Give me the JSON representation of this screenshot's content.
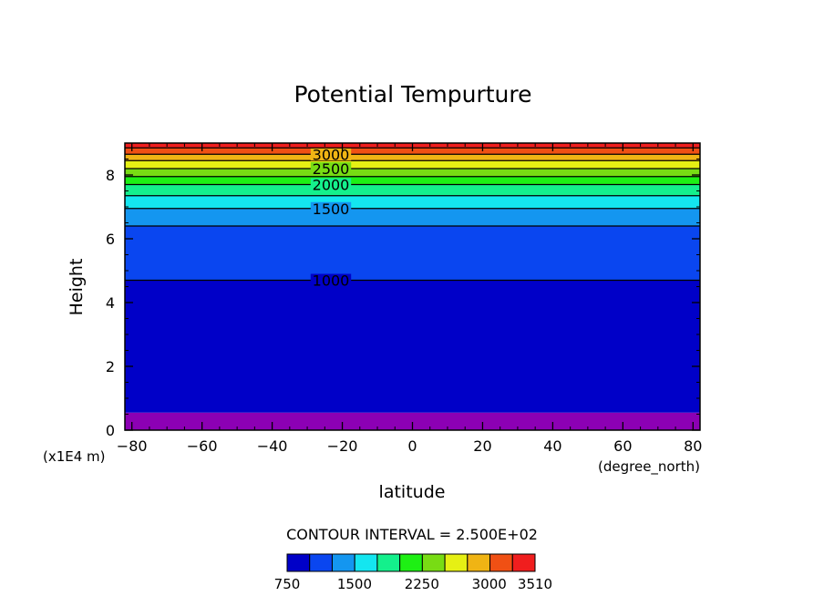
{
  "chart_data": {
    "type": "heatmap",
    "subtype": "filled-contour",
    "title": "Potential Tempurture",
    "xlabel": "latitude",
    "ylabel": "Height",
    "x_units": "(degree_north)",
    "y_units": "(x1E4 m)",
    "xlim": [
      -82,
      82
    ],
    "ylim": [
      0,
      9
    ],
    "x_ticks": [
      -80,
      -60,
      -40,
      -20,
      0,
      20,
      40,
      60,
      80
    ],
    "y_ticks": [
      0,
      2,
      4,
      6,
      8
    ],
    "contour_interval_text": "CONTOUR INTERVAL = 2.500E+02",
    "colorbar": {
      "labels": [
        "750",
        "1500",
        "2250",
        "3000",
        "3510"
      ],
      "label_values": [
        750,
        1500,
        2250,
        3000,
        3510
      ],
      "colors": [
        "#0000c8",
        "#0a46f0",
        "#1496f0",
        "#14e6f0",
        "#14f08c",
        "#1ef014",
        "#78dc14",
        "#e6f014",
        "#f0b414",
        "#f05014",
        "#f01e1e"
      ]
    },
    "filled_bands": [
      {
        "from": 0.0,
        "to": 0.55,
        "color": "#8c00b4"
      },
      {
        "from": 0.55,
        "to": 4.7,
        "color": "#0000c8"
      },
      {
        "from": 4.7,
        "to": 6.4,
        "color": "#0a46f0"
      },
      {
        "from": 6.4,
        "to": 6.95,
        "color": "#1496f0"
      },
      {
        "from": 6.95,
        "to": 7.35,
        "color": "#14e6f0"
      },
      {
        "from": 7.35,
        "to": 7.7,
        "color": "#14f08c"
      },
      {
        "from": 7.7,
        "to": 7.95,
        "color": "#1ef014"
      },
      {
        "from": 7.95,
        "to": 8.2,
        "color": "#78dc14"
      },
      {
        "from": 8.2,
        "to": 8.45,
        "color": "#e6f014"
      },
      {
        "from": 8.45,
        "to": 8.65,
        "color": "#f0b414"
      },
      {
        "from": 8.65,
        "to": 8.85,
        "color": "#f05014"
      },
      {
        "from": 8.85,
        "to": 9.0,
        "color": "#f01e1e"
      }
    ],
    "contour_lines": [
      {
        "value": 1000,
        "height": 4.7,
        "label": "1000"
      },
      {
        "value": 1250,
        "height": 6.4,
        "label": ""
      },
      {
        "value": 1500,
        "height": 6.95,
        "label": "1500"
      },
      {
        "value": 1750,
        "height": 7.35,
        "label": ""
      },
      {
        "value": 2000,
        "height": 7.7,
        "label": "2000"
      },
      {
        "value": 2250,
        "height": 7.95,
        "label": ""
      },
      {
        "value": 2500,
        "height": 8.2,
        "label": "2500"
      },
      {
        "value": 2750,
        "height": 8.45,
        "label": ""
      },
      {
        "value": 3000,
        "height": 8.65,
        "label": "3000"
      },
      {
        "value": 3250,
        "height": 8.85,
        "label": ""
      }
    ]
  }
}
